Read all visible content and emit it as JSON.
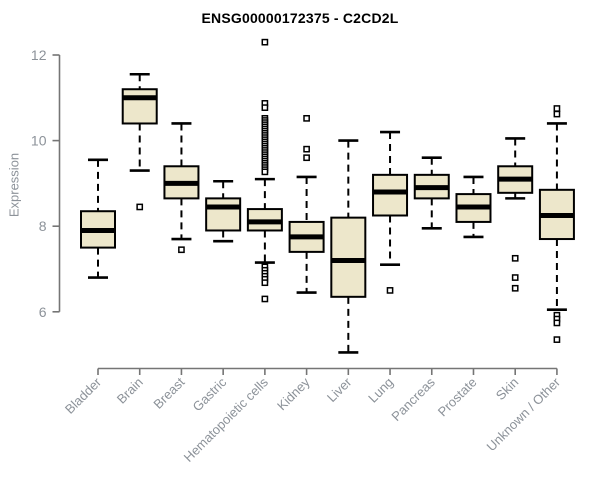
{
  "chart_data": {
    "type": "boxplot",
    "title": "ENSG00000172375 - C2CD2L",
    "ylabel": "Expression",
    "xlabel": "",
    "yticks": [
      6,
      8,
      10,
      12
    ],
    "y_axis_range": [
      6,
      12
    ],
    "grid": false,
    "legend": "none",
    "categories": [
      "Bladder",
      "Brain",
      "Breast",
      "Gastric",
      "Hematopoietic cells",
      "Kidney",
      "Liver",
      "Lung",
      "Pancreas",
      "Prostate",
      "Skin",
      "Unknown / Other"
    ],
    "boxes": [
      {
        "category": "Bladder",
        "whisker_low": 6.8,
        "q1": 7.5,
        "median": 7.9,
        "q3": 8.35,
        "whisker_high": 9.55,
        "outliers": []
      },
      {
        "category": "Brain",
        "whisker_low": 9.3,
        "q1": 10.4,
        "median": 11.0,
        "q3": 11.2,
        "whisker_high": 11.55,
        "outliers": [
          8.45
        ]
      },
      {
        "category": "Breast",
        "whisker_low": 7.7,
        "q1": 8.65,
        "median": 9.0,
        "q3": 9.4,
        "whisker_high": 10.4,
        "outliers": [
          7.45
        ]
      },
      {
        "category": "Gastric",
        "whisker_low": 7.65,
        "q1": 7.9,
        "median": 8.45,
        "q3": 8.65,
        "whisker_high": 9.05,
        "outliers": []
      },
      {
        "category": "Hematopoietic cells",
        "whisker_low": 7.15,
        "q1": 7.9,
        "median": 8.1,
        "q3": 8.4,
        "whisker_high": 9.1,
        "outliers": [
          12.3,
          10.87,
          10.77,
          10.52,
          10.47,
          10.42,
          10.37,
          10.32,
          10.27,
          10.22,
          10.17,
          10.12,
          10.07,
          10.02,
          9.97,
          9.92,
          9.87,
          9.82,
          9.77,
          9.72,
          9.67,
          9.62,
          9.57,
          9.52,
          9.47,
          9.42,
          9.37,
          9.32,
          9.27,
          7.05,
          6.97,
          6.9,
          6.83,
          6.76,
          6.68,
          6.3
        ]
      },
      {
        "category": "Kidney",
        "whisker_low": 6.45,
        "q1": 7.4,
        "median": 7.75,
        "q3": 8.1,
        "whisker_high": 9.15,
        "outliers": [
          10.52,
          9.8,
          9.6
        ]
      },
      {
        "category": "Liver",
        "whisker_low": 5.05,
        "q1": 6.35,
        "median": 7.2,
        "q3": 8.2,
        "whisker_high": 10.0,
        "outliers": []
      },
      {
        "category": "Lung",
        "whisker_low": 7.1,
        "q1": 8.25,
        "median": 8.8,
        "q3": 9.2,
        "whisker_high": 10.2,
        "outliers": [
          6.5
        ]
      },
      {
        "category": "Pancreas",
        "whisker_low": 7.95,
        "q1": 8.65,
        "median": 8.9,
        "q3": 9.2,
        "whisker_high": 9.6,
        "outliers": []
      },
      {
        "category": "Prostate",
        "whisker_low": 7.75,
        "q1": 8.1,
        "median": 8.45,
        "q3": 8.75,
        "whisker_high": 9.15,
        "outliers": []
      },
      {
        "category": "Skin",
        "whisker_low": 8.65,
        "q1": 8.78,
        "median": 9.1,
        "q3": 9.4,
        "whisker_high": 10.05,
        "outliers": [
          7.25,
          6.8,
          6.55
        ]
      },
      {
        "category": "Unknown / Other",
        "whisker_low": 6.05,
        "q1": 7.7,
        "median": 8.25,
        "q3": 8.85,
        "whisker_high": 10.4,
        "outliers": [
          10.75,
          10.62,
          5.92,
          5.83,
          5.74,
          5.35
        ]
      }
    ],
    "colors": {
      "box_fill": "#ede7cb",
      "box_border": "#000000",
      "median": "#000000",
      "whisker": "#000000",
      "outlier_fill": "#ffffff",
      "outlier_border": "#000000",
      "axis": "#757575",
      "tick_label": "#8c9299",
      "title": "#000000",
      "background": "#ffffff"
    }
  }
}
